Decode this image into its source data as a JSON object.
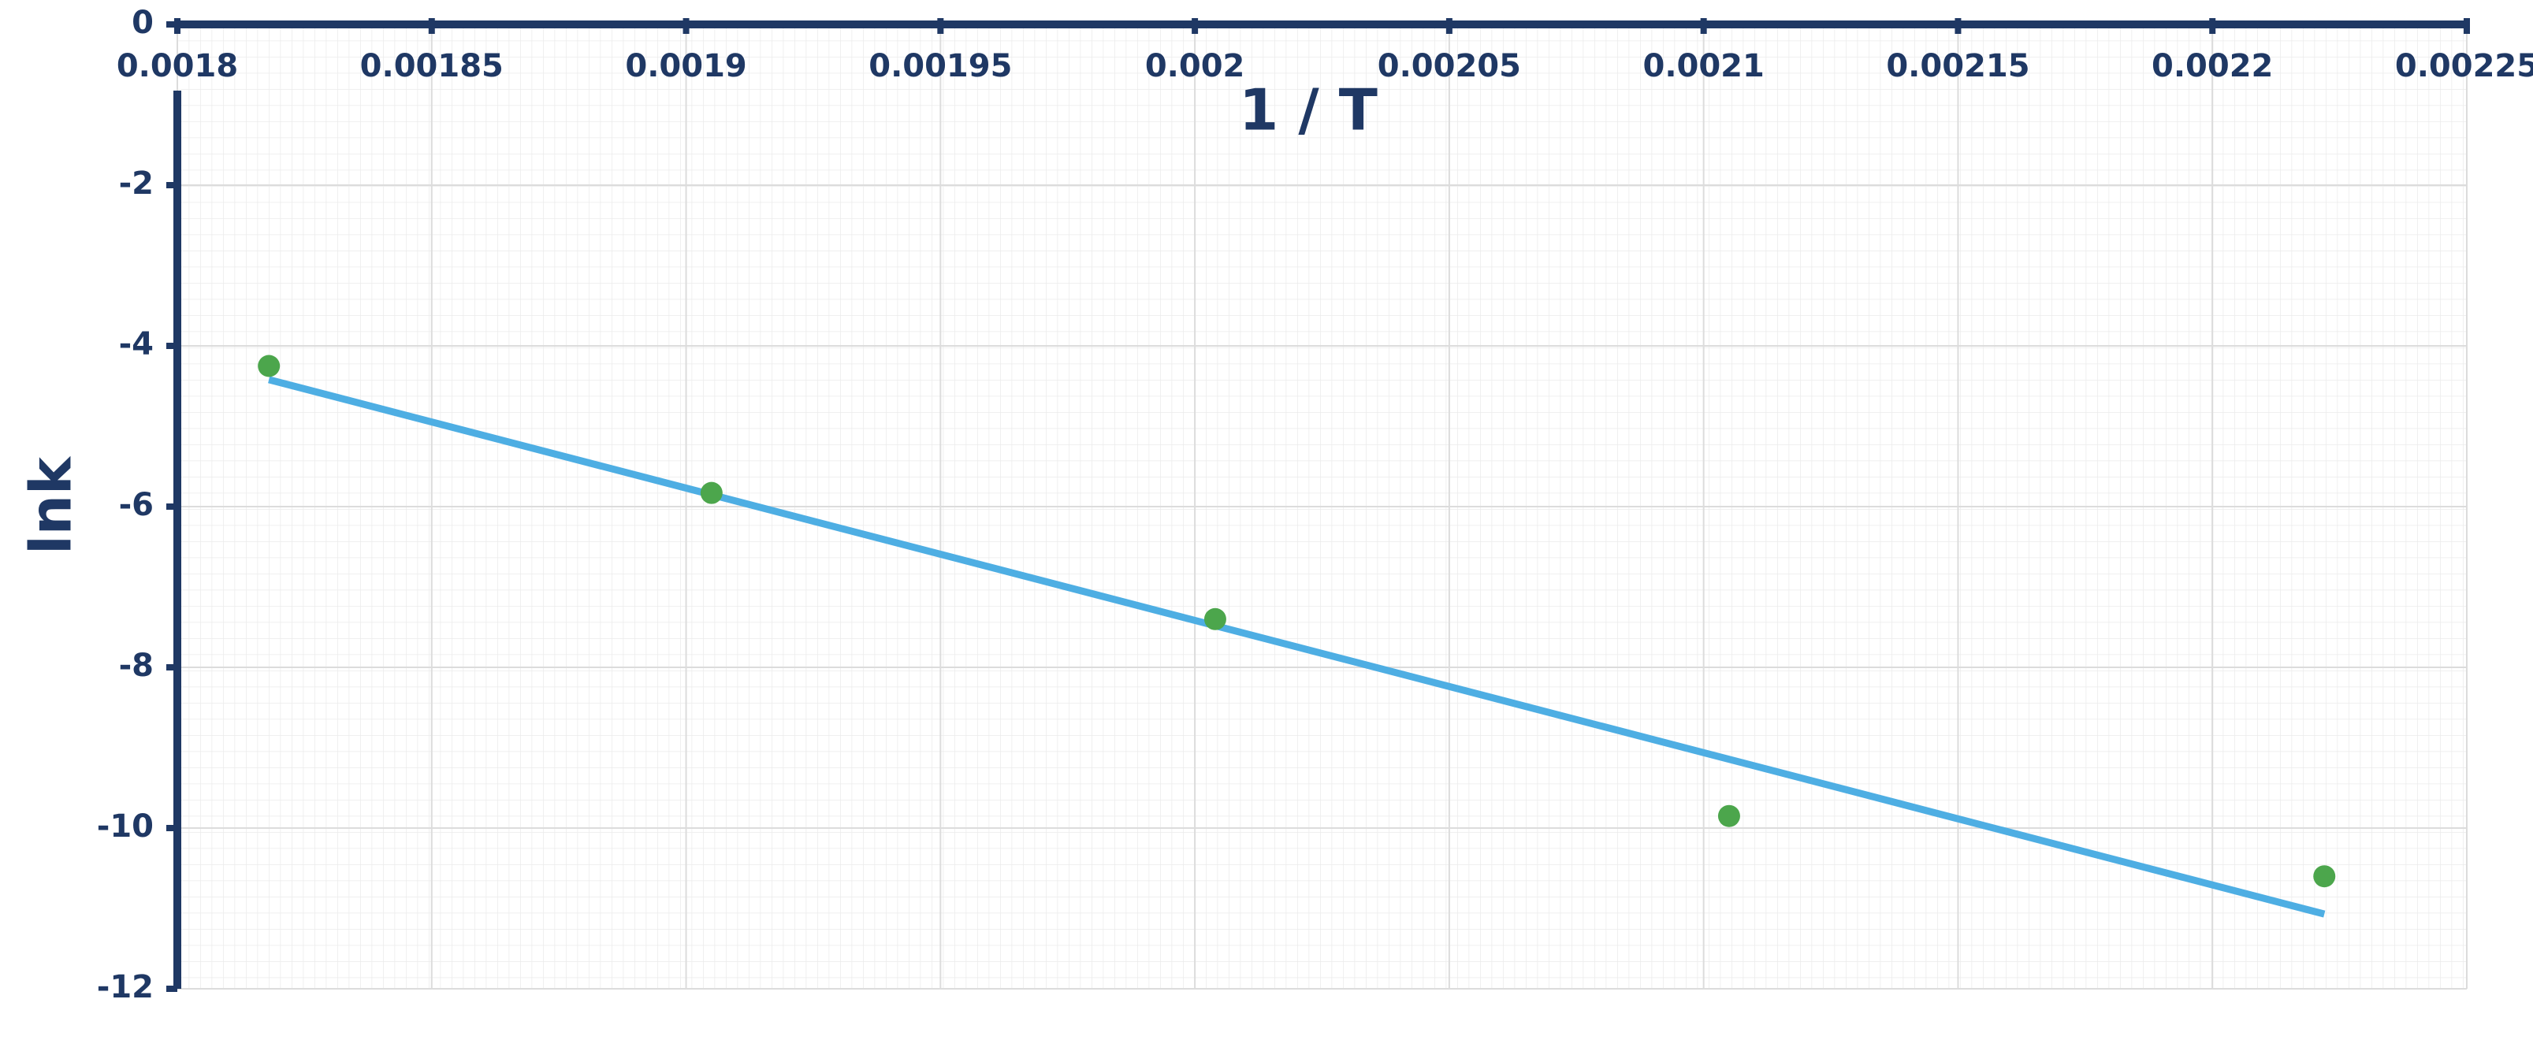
{
  "chart_data": {
    "type": "scatter",
    "x_label": "1 / T",
    "y_label": "lnk",
    "xlim": [
      0.0018,
      0.00225
    ],
    "xticks": [
      0.0018,
      0.00185,
      0.0019,
      0.00195,
      0.002,
      0.00205,
      0.0021,
      0.00215,
      0.0022,
      0.00225
    ],
    "ylim": [
      -12,
      0
    ],
    "yticks": [
      0,
      -2,
      -4,
      -6,
      -8,
      -10,
      -12
    ],
    "grid": true,
    "axis_color": "#1f3864",
    "series": [
      {
        "mode": "markers",
        "color": "#4ca64c",
        "x": [
          0.001818,
          0.001905,
          0.002004,
          0.002105,
          0.002222
        ],
        "values": [
          -4.25,
          -5.83,
          -7.4,
          -9.85,
          -10.6
        ]
      },
      {
        "mode": "line",
        "color": "#4eaee3",
        "x": [
          0.001818,
          0.002222
        ],
        "values": [
          -4.42,
          -11.07
        ]
      }
    ]
  }
}
